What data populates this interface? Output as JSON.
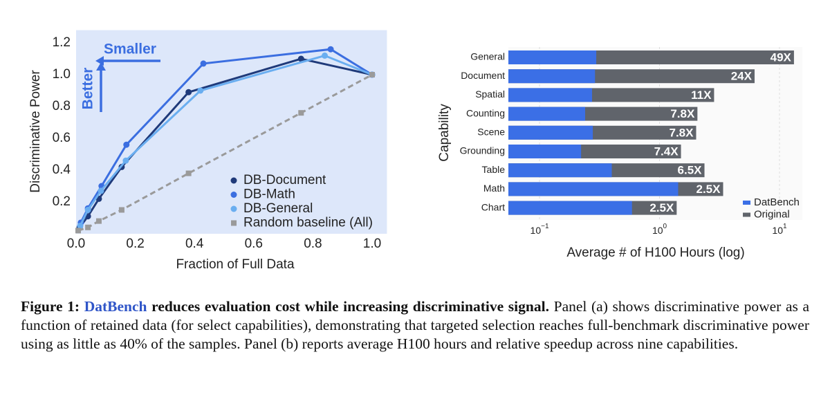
{
  "chart_data": [
    {
      "type": "line",
      "xlabel": "Fraction of Full Data",
      "ylabel": "Discriminative Power",
      "xlim": [
        0,
        1.05
      ],
      "ylim": [
        0,
        1.28
      ],
      "xticks": [
        {
          "value": 0,
          "label": "0.0"
        },
        0.2,
        0.4,
        0.6,
        0.8,
        {
          "value": 1,
          "label": "1.0"
        }
      ],
      "yticks": [
        0.2,
        0.4,
        0.6,
        0.8,
        {
          "value": 1,
          "label": "1.0"
        },
        1.2
      ],
      "annotations": [
        "Smaller",
        "Better"
      ],
      "legend": "lower right",
      "series": [
        {
          "name": "DB-Document",
          "color": "#1f3a7a",
          "marker": "circle",
          "x": [
            0.012,
            0.04,
            0.077,
            0.154,
            0.38,
            0.76,
            1.0
          ],
          "values": [
            0.04,
            0.11,
            0.22,
            0.42,
            0.89,
            1.1,
            1.0
          ]
        },
        {
          "name": "DB-Math",
          "color": "#3b6ee0",
          "marker": "circle",
          "x": [
            0.016,
            0.04,
            0.086,
            0.17,
            0.43,
            0.86,
            1.0
          ],
          "values": [
            0.07,
            0.16,
            0.3,
            0.56,
            1.07,
            1.16,
            1.0
          ]
        },
        {
          "name": "DB-General",
          "color": "#6aaef0",
          "marker": "circle",
          "x": [
            0.014,
            0.04,
            0.084,
            0.168,
            0.42,
            0.84,
            1.0
          ],
          "values": [
            0.05,
            0.15,
            0.27,
            0.46,
            0.9,
            1.12,
            1.0
          ]
        },
        {
          "name": "Random baseline (All)",
          "color": "#9a9a9a",
          "marker": "square",
          "dashed": true,
          "x": [
            0.007,
            0.04,
            0.077,
            0.154,
            0.38,
            0.76,
            1.0
          ],
          "values": [
            0.02,
            0.04,
            0.08,
            0.15,
            0.38,
            0.76,
            1.0
          ]
        }
      ]
    },
    {
      "type": "bar",
      "orientation": "horizontal",
      "log_x": true,
      "grid": true,
      "xlabel": "Average # of H100 Hours (log)",
      "ylabel": "Capability",
      "xlim": [
        0.055,
        15.5
      ],
      "xticks": [
        {
          "value": 0.1,
          "label": "10",
          "exponent": "−1"
        },
        {
          "value": 1,
          "label": "10",
          "exponent": "0"
        },
        {
          "value": 10,
          "label": "10",
          "exponent": "1"
        }
      ],
      "categories": [
        "General",
        "Document",
        "Spatial",
        "Counting",
        "Scene",
        "Grounding",
        "Table",
        "Math",
        "Chart"
      ],
      "bar_labels": [
        "49X",
        "24X",
        "11X",
        "7.8X",
        "7.8X",
        "7.4X",
        "6.5X",
        "2.5X",
        "2.5X"
      ],
      "legend": "lower right",
      "series": [
        {
          "name": "DatBench",
          "color": "#3b6fe6",
          "values": [
            0.297,
            0.29,
            0.274,
            0.24,
            0.278,
            0.222,
            0.4,
            1.43,
            0.59
          ]
        },
        {
          "name": "Original",
          "color": "#60646b",
          "values": [
            13.2,
            6.2,
            2.85,
            2.07,
            2.02,
            1.51,
            2.37,
            3.39,
            1.39
          ]
        }
      ]
    }
  ],
  "caption": {
    "label": "Figure 1:",
    "highlight": "DatBench",
    "headline": "reduces evaluation cost while increasing discriminative signal.",
    "body": "Panel (a) shows discriminative power as a function of retained data (for select capabilities), demonstrating that targeted selection reaches full-benchmark discriminative power using as little as 40% of the samples. Panel (b) reports average H100 hours and relative speedup across nine capabilities."
  }
}
